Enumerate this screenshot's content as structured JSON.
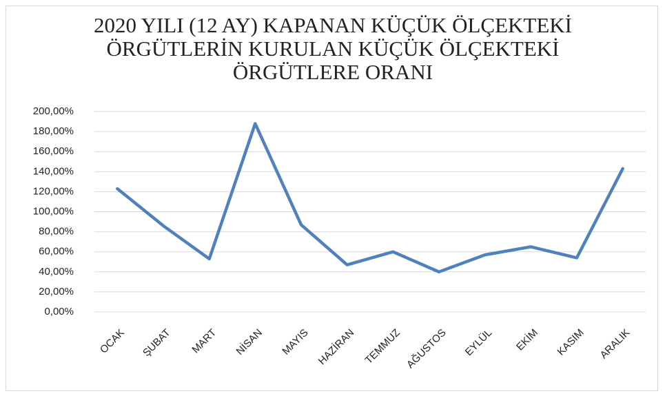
{
  "chart_data": {
    "type": "line",
    "title": "2020 YILI (12 AY) KAPANAN KÜÇÜK ÖLÇEKTEKİ ÖRGÜTLERİN KURULAN KÜÇÜK ÖLÇEKTEKİ ÖRGÜTLERE ORANI",
    "categories": [
      "OCAK",
      "ŞUBAT",
      "MART",
      "NİSAN",
      "MAYIS",
      "HAZİRAN",
      "TEMMUZ",
      "AĞUSTOS",
      "EYLÜL",
      "EKİM",
      "KASIM",
      "ARALIK"
    ],
    "values": [
      123,
      86,
      53,
      188,
      87,
      47,
      60,
      40,
      57,
      65,
      54,
      143
    ],
    "color": "#4f81bd",
    "ylim": [
      0,
      200
    ],
    "yticks": [
      {
        "value": 0,
        "label": "0,00%"
      },
      {
        "value": 20,
        "label": "20,00%"
      },
      {
        "value": 40,
        "label": "40,00%"
      },
      {
        "value": 60,
        "label": "60,00%"
      },
      {
        "value": 80,
        "label": "80,00%"
      },
      {
        "value": 100,
        "label": "100,00%"
      },
      {
        "value": 120,
        "label": "120,00%"
      },
      {
        "value": 140,
        "label": "140,00%"
      },
      {
        "value": 160,
        "label": "160,00%"
      },
      {
        "value": 180,
        "label": "180,00%"
      },
      {
        "value": 200,
        "label": "200,00%"
      }
    ],
    "grid": true
  }
}
